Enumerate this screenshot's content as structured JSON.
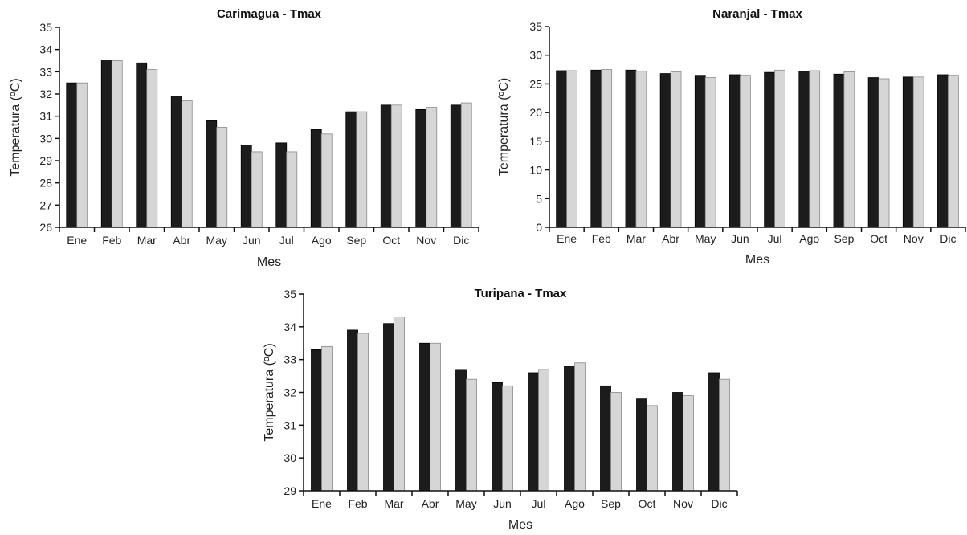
{
  "chart_data": [
    {
      "type": "bar",
      "title": "Carimagua - Tmax",
      "xlabel": "Mes",
      "ylabel": "Temperatura (ºC)",
      "ylim": [
        26,
        35
      ],
      "yticks": [
        "26",
        "27",
        "28",
        "29",
        "30",
        "31",
        "32",
        "33",
        "34",
        "35"
      ],
      "categories": [
        "Ene",
        "Feb",
        "Mar",
        "Abr",
        "May",
        "Jun",
        "Jul",
        "Ago",
        "Sep",
        "Oct",
        "Nov",
        "Dic"
      ],
      "legend": "none",
      "grid": false,
      "series_colors": [
        "#1c1c1c",
        "#d6d6d6"
      ],
      "series": [
        {
          "values": [
            32.5,
            33.5,
            33.4,
            31.9,
            30.8,
            29.7,
            29.8,
            30.4,
            31.2,
            31.5,
            31.3,
            31.5
          ]
        },
        {
          "values": [
            32.5,
            33.5,
            33.1,
            31.7,
            30.5,
            29.4,
            29.4,
            30.2,
            31.2,
            31.5,
            31.4,
            31.6
          ]
        }
      ]
    },
    {
      "type": "bar",
      "title": "Naranjal - Tmax",
      "xlabel": "Mes",
      "ylabel": "Temperatura (ºC)",
      "ylim": [
        0,
        35
      ],
      "yticks": [
        "0",
        "5",
        "10",
        "15",
        "20",
        "25",
        "30",
        "35"
      ],
      "categories": [
        "Ene",
        "Feb",
        "Mar",
        "Abr",
        "May",
        "Jun",
        "Jul",
        "Ago",
        "Sep",
        "Oct",
        "Nov",
        "Dic"
      ],
      "legend": "none",
      "grid": false,
      "series_colors": [
        "#1c1c1c",
        "#d6d6d6"
      ],
      "series": [
        {
          "values": [
            27.3,
            27.4,
            27.4,
            26.8,
            26.5,
            26.6,
            27.0,
            27.2,
            26.7,
            26.1,
            26.2,
            26.6
          ]
        },
        {
          "values": [
            27.3,
            27.5,
            27.2,
            27.1,
            26.1,
            26.5,
            27.4,
            27.3,
            27.1,
            25.9,
            26.2,
            26.5
          ]
        }
      ]
    },
    {
      "type": "bar",
      "title": "Turipana - Tmax",
      "xlabel": "Mes",
      "ylabel": "Temperatura (ºC)",
      "ylim": [
        29,
        35
      ],
      "yticks": [
        "29",
        "30",
        "31",
        "32",
        "33",
        "34",
        "35"
      ],
      "categories": [
        "Ene",
        "Feb",
        "Mar",
        "Abr",
        "May",
        "Jun",
        "Jul",
        "Ago",
        "Sep",
        "Oct",
        "Nov",
        "Dic"
      ],
      "legend": "none",
      "grid": false,
      "series_colors": [
        "#1c1c1c",
        "#d6d6d6"
      ],
      "series": [
        {
          "values": [
            33.3,
            33.9,
            34.1,
            33.5,
            32.7,
            32.3,
            32.6,
            32.8,
            32.2,
            31.8,
            32.0,
            32.6
          ]
        },
        {
          "values": [
            33.4,
            33.8,
            34.3,
            33.5,
            32.4,
            32.2,
            32.7,
            32.9,
            32.0,
            31.6,
            31.9,
            32.4
          ]
        }
      ]
    }
  ]
}
